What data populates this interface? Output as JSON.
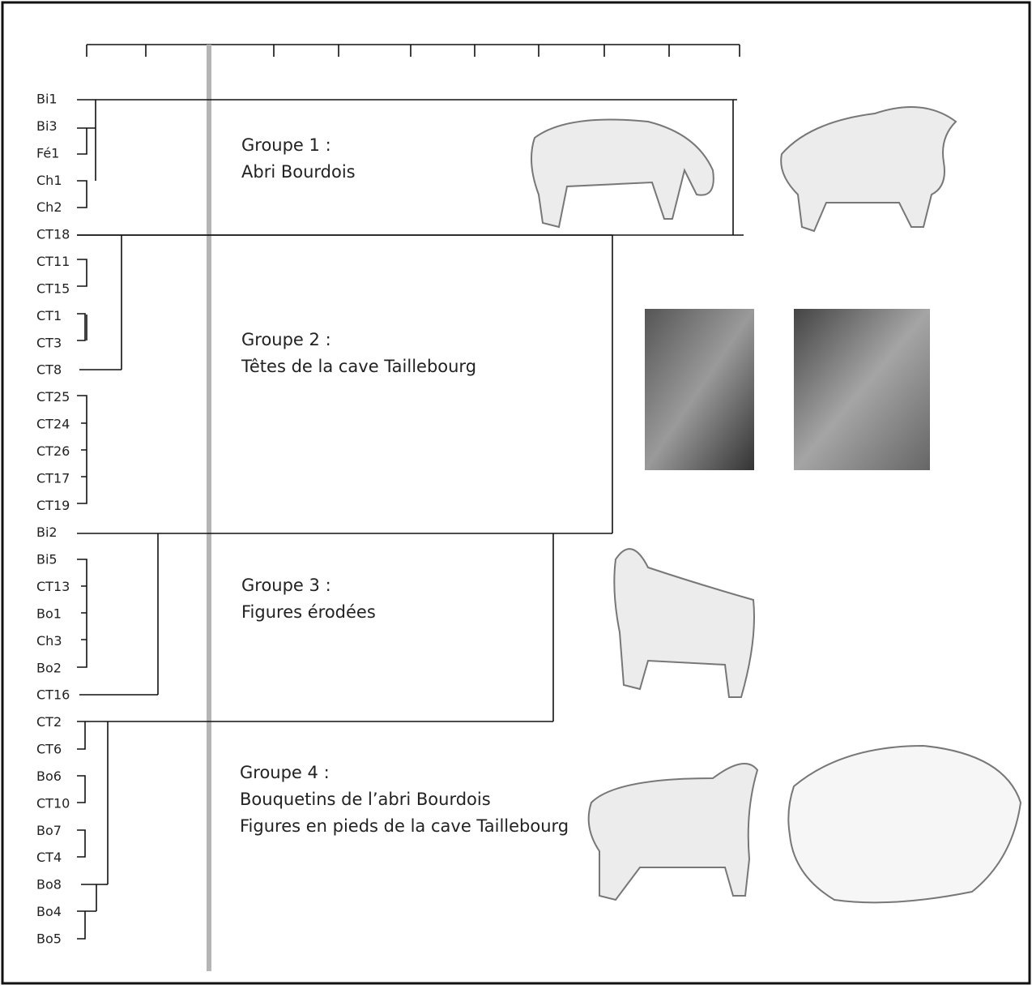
{
  "leaves": [
    "Bi1",
    "Bi3",
    "Fé1",
    "Ch1",
    "Ch2",
    "CT18",
    "CT11",
    "CT15",
    "CT1",
    "CT3",
    "CT8",
    "CT25",
    "CT24",
    "CT26",
    "CT17",
    "CT19",
    "Bi2",
    "Bi5",
    "CT13",
    "Bo1",
    "Ch3",
    "Bo2",
    "CT16",
    "CT2",
    "CT6",
    "Bo6",
    "CT10",
    "Bo7",
    "CT4",
    "Bo8",
    "Bo4",
    "Bo5"
  ],
  "groups": [
    {
      "title": "Groupe 1 :",
      "lines": [
        "Abri Bourdois"
      ]
    },
    {
      "title": "Groupe 2 :",
      "lines": [
        "Têtes de la cave Taillebourg"
      ]
    },
    {
      "title": "Groupe 3 :",
      "lines": [
        "Figures érodées"
      ]
    },
    {
      "title": "Groupe 4 :",
      "lines": [
        "Bouquetins de l’abri Bourdois",
        "Figures en pieds de la cave Taillebourg"
      ]
    }
  ]
}
